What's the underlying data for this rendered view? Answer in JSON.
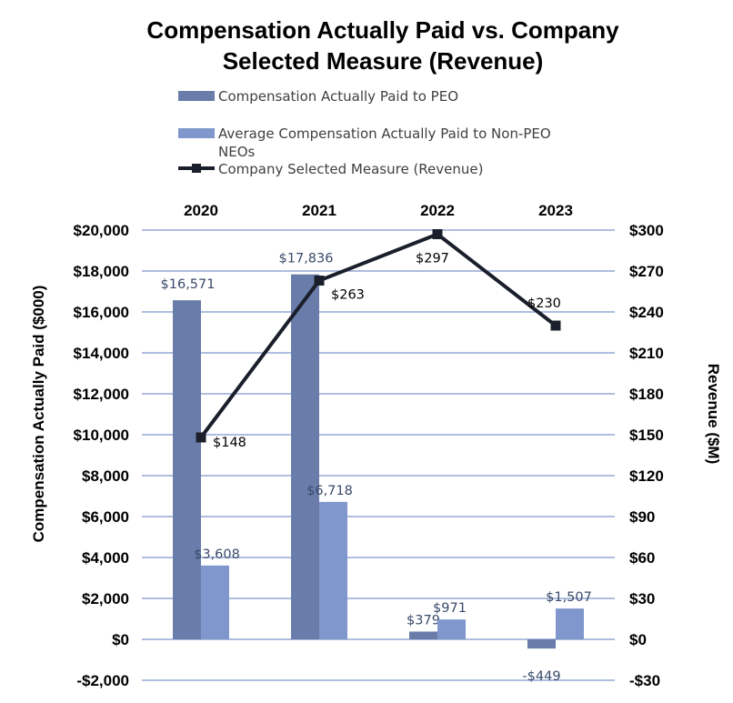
{
  "chart_data": {
    "type": "bar",
    "title_line1": "Compensation Actually Paid vs. Company",
    "title_line2": "Selected Measure (Revenue)",
    "categories": [
      "2020",
      "2021",
      "2022",
      "2023"
    ],
    "series": [
      {
        "name": "Compensation Actually Paid to PEO",
        "kind": "bar",
        "axis": "left",
        "color": "#6a7daa",
        "values": [
          16571,
          17836,
          379,
          -449
        ],
        "labels": [
          "$16,571",
          "$17,836",
          "$379",
          "-$449"
        ]
      },
      {
        "name_line1": "Average Compensation Actually Paid to Non-PEO",
        "name_line2": "NEOs",
        "kind": "bar",
        "axis": "left",
        "color": "#7f97cc",
        "values": [
          3608,
          6718,
          971,
          1507
        ],
        "labels": [
          "$3,608",
          "$6,718",
          "$971",
          "$1,507"
        ]
      },
      {
        "name": "Company Selected Measure (Revenue)",
        "kind": "line",
        "axis": "right",
        "color": "#1a1f2b",
        "values": [
          148,
          263,
          297,
          230
        ],
        "labels": [
          "$148",
          "$263",
          "$297",
          "$230"
        ]
      }
    ],
    "left_axis": {
      "label": "Compensation Actually Paid ($000)",
      "ylim": [
        -2000,
        20000
      ],
      "ticks": [
        20000,
        18000,
        16000,
        14000,
        12000,
        10000,
        8000,
        6000,
        4000,
        2000,
        0,
        -2000
      ],
      "tick_labels": [
        "$20,000",
        "$18,000",
        "$16,000",
        "$14,000",
        "$12,000",
        "$10,000",
        "$8,000",
        "$6,000",
        "$4,000",
        "$2,000",
        "$0",
        "-$2,000"
      ]
    },
    "right_axis": {
      "label": "Revenue ($M)",
      "ylim": [
        -30,
        300
      ],
      "ticks": [
        300,
        270,
        240,
        210,
        180,
        150,
        120,
        90,
        60,
        30,
        0,
        -30
      ],
      "tick_labels": [
        "$300",
        "$270",
        "$240",
        "$210",
        "$180",
        "$150",
        "$120",
        "$90",
        "$60",
        "$30",
        "$0",
        "-$30"
      ]
    },
    "grid": true,
    "gridline_color": "#7f97cc",
    "legend_position": "top"
  }
}
